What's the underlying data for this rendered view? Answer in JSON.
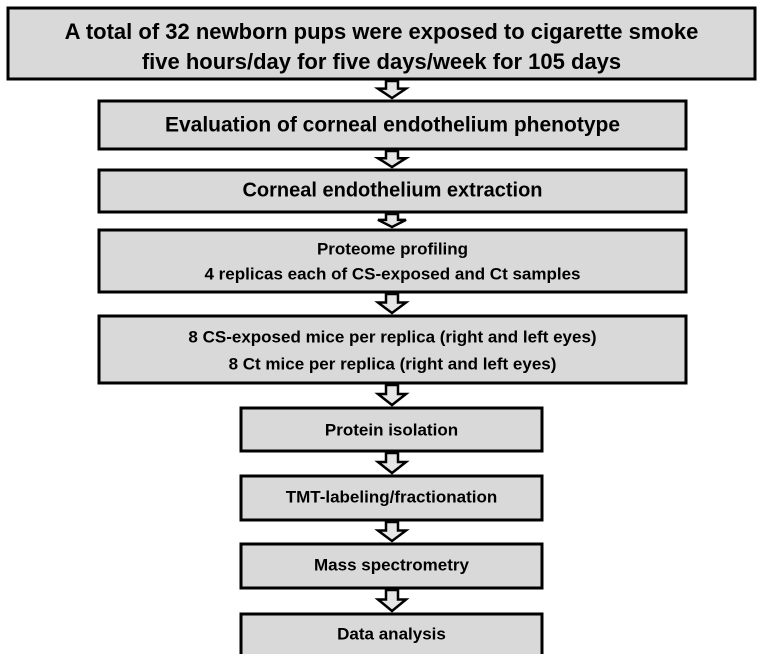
{
  "nodes": [
    {
      "lines": [
        "A total of 32 newborn pups were exposed to cigarette smoke",
        "five hours/day for five days/week for 105 days"
      ]
    },
    {
      "lines": [
        "Evaluation of corneal endothelium phenotype"
      ]
    },
    {
      "lines": [
        "Corneal endothelium extraction"
      ]
    },
    {
      "lines": [
        "Proteome profiling",
        "4 replicas each of CS-exposed and Ct samples"
      ]
    },
    {
      "lines": [
        "8 CS-exposed mice per replica (right and left eyes)",
        "8 Ct mice per replica (right and left eyes)"
      ]
    },
    {
      "lines": [
        "Protein isolation"
      ]
    },
    {
      "lines": [
        "TMT-labeling/fractionation"
      ]
    },
    {
      "lines": [
        "Mass spectrometry"
      ]
    },
    {
      "lines": [
        "Data analysis"
      ]
    }
  ]
}
